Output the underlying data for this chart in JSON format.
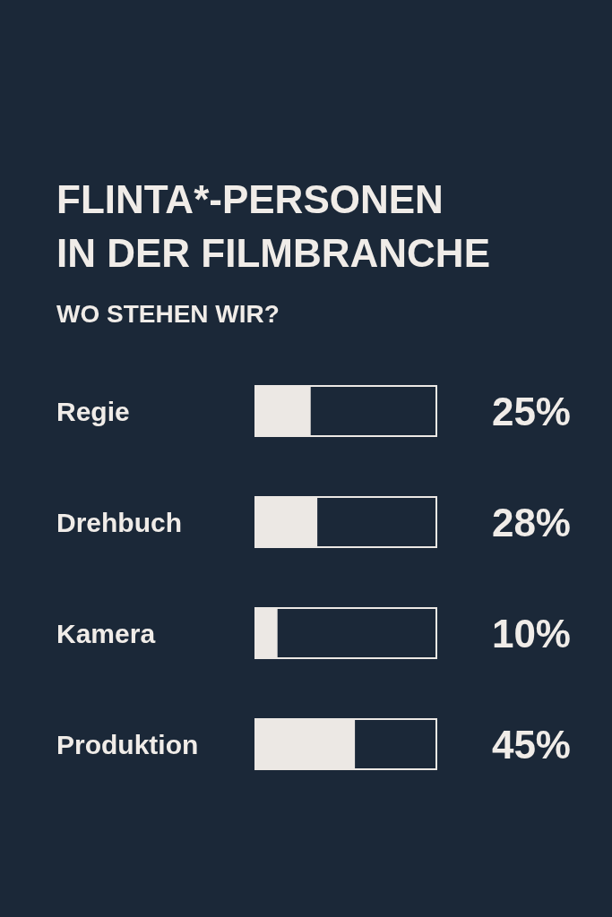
{
  "chart_data": {
    "type": "bar",
    "orientation": "horizontal",
    "title": "FLINTA*-PERSONEN\nIN DER FILMBRANCHE",
    "subtitle": "WO STEHEN WIR?",
    "categories": [
      "Regie",
      "Drehbuch",
      "Kamera",
      "Produktion"
    ],
    "values": [
      25,
      28,
      10,
      45
    ],
    "color": "#ece8e4",
    "value_labels": [
      "25%",
      "28%",
      "10%",
      "45%"
    ]
  }
}
